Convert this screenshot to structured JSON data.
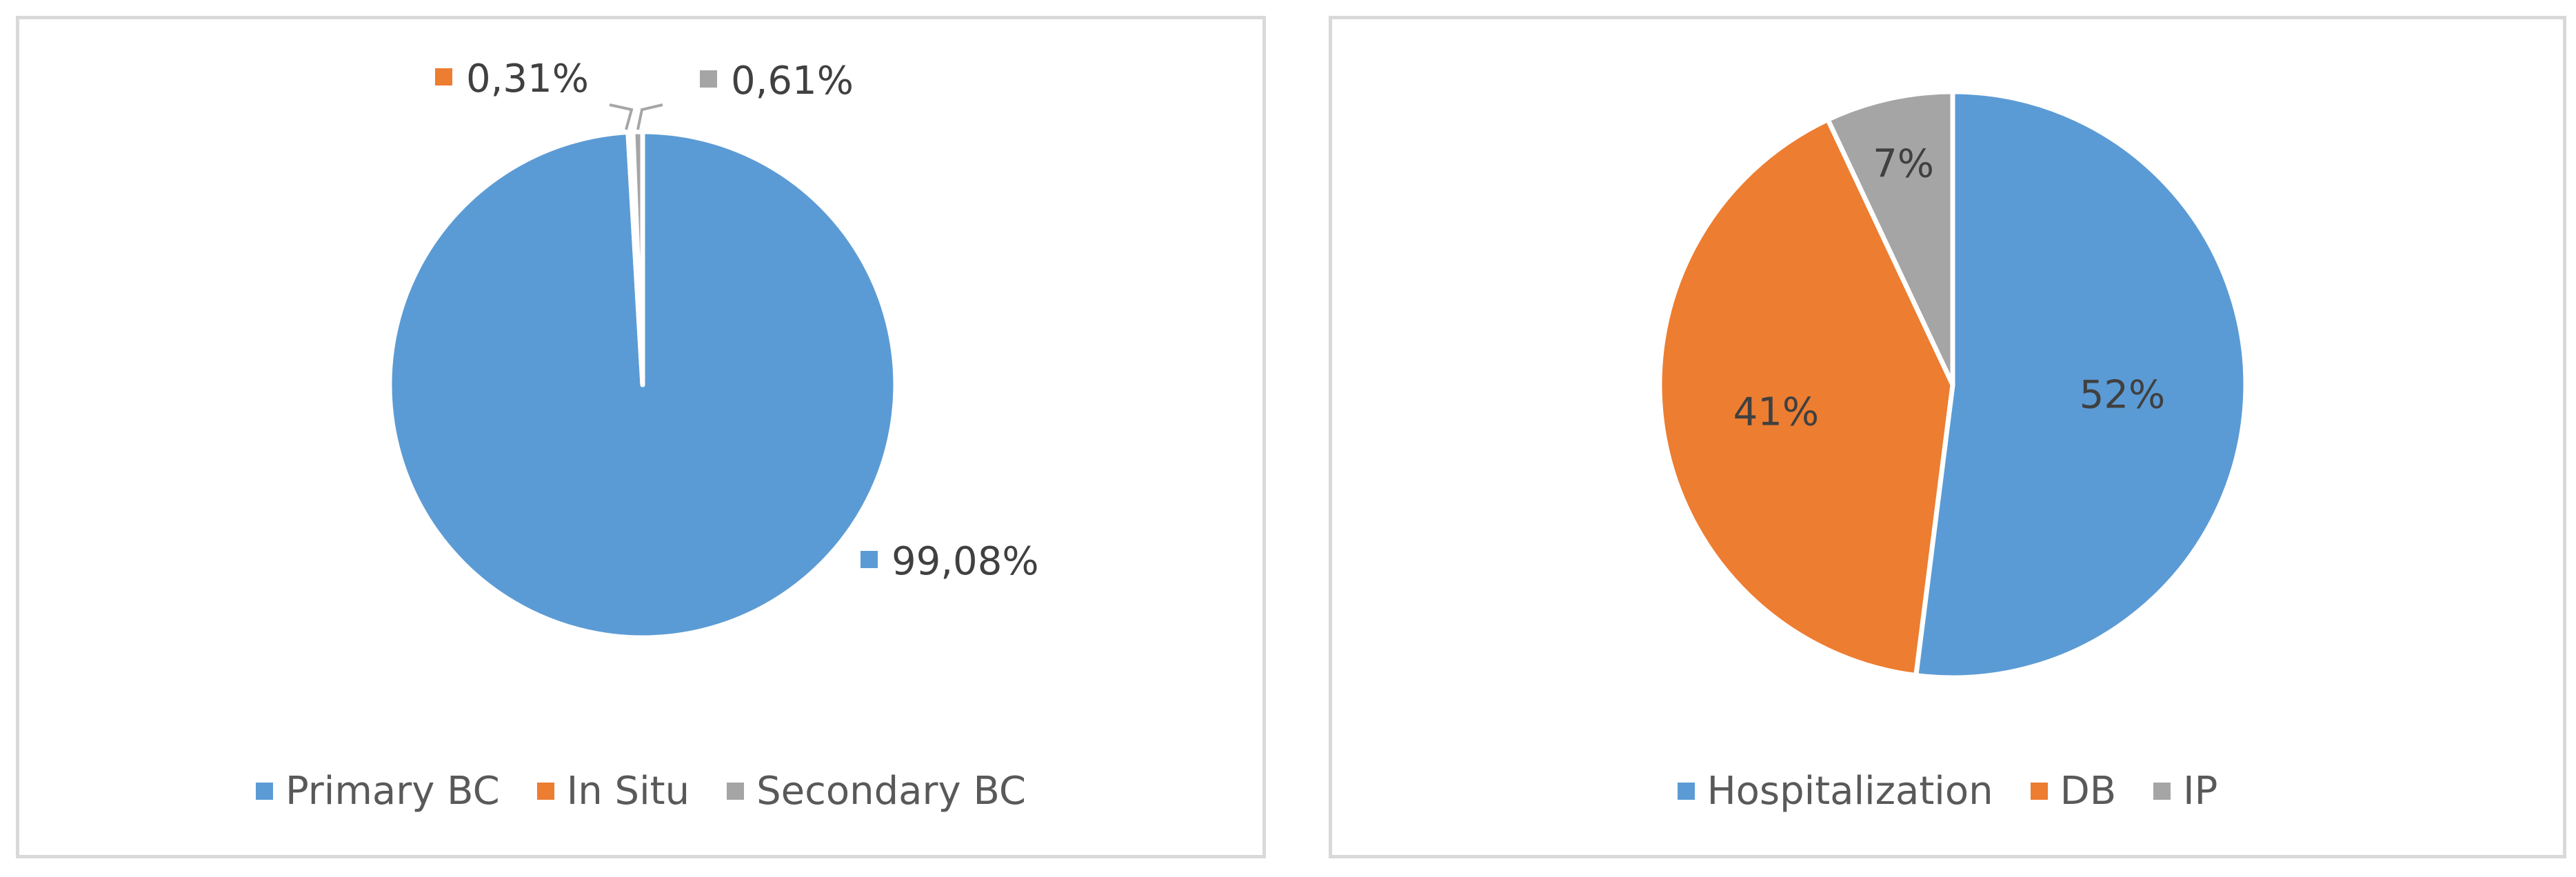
{
  "chart_data": [
    {
      "type": "pie",
      "title": "",
      "categories": [
        "Primary BC",
        "In Situ",
        "Secondary BC"
      ],
      "values": [
        99.08,
        0.31,
        0.61
      ],
      "value_labels": [
        "99,08%",
        "0,31%",
        "0,61%"
      ],
      "colors": [
        "#5b9bd5",
        "#ed7d31",
        "#a5a5a5"
      ],
      "legend": "bottom",
      "legend_entries": [
        "Primary BC",
        "In Situ",
        "Secondary BC"
      ]
    },
    {
      "type": "pie",
      "title": "",
      "categories": [
        "Hospitalization",
        "DB",
        "IP"
      ],
      "values": [
        52,
        41,
        7
      ],
      "value_labels": [
        "52%",
        "41%",
        "7%"
      ],
      "colors": [
        "#5b9bd5",
        "#ed7d31",
        "#a5a5a5"
      ],
      "legend": "bottom",
      "legend_entries": [
        "Hospitalization",
        "DB",
        "IP"
      ]
    }
  ]
}
